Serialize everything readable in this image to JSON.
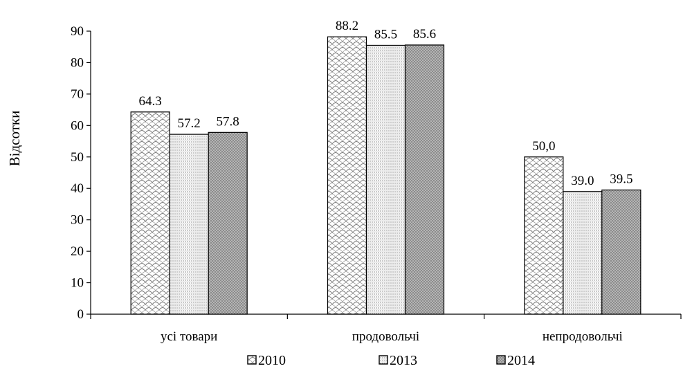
{
  "chart_data": {
    "type": "bar",
    "title": "",
    "xlabel": "",
    "ylabel": "Відсотки",
    "ylim": [
      0,
      90
    ],
    "yticks": [
      0,
      10,
      20,
      30,
      40,
      50,
      60,
      70,
      80,
      90
    ],
    "grid": false,
    "legend_position": "bottom",
    "categories": [
      "усі товари",
      "продовольчі",
      "непродовольчі"
    ],
    "series": [
      {
        "name": "2010",
        "values": [
          64.3,
          88.2,
          50.0
        ],
        "labels": [
          "64.3",
          "88.2",
          "50,0"
        ],
        "pattern": "scales"
      },
      {
        "name": "2013",
        "values": [
          57.2,
          85.5,
          39.0
        ],
        "labels": [
          "57.2",
          "85.5",
          "39.0"
        ],
        "pattern": "hlines"
      },
      {
        "name": "2014",
        "values": [
          57.8,
          85.6,
          39.5
        ],
        "labels": [
          "57.8",
          "85.6",
          "39.5"
        ],
        "pattern": "dots"
      }
    ],
    "colors": {
      "bar_outline": "#000000",
      "pattern_ink": "#666666",
      "dots_bg": "#8c8c8c"
    }
  }
}
